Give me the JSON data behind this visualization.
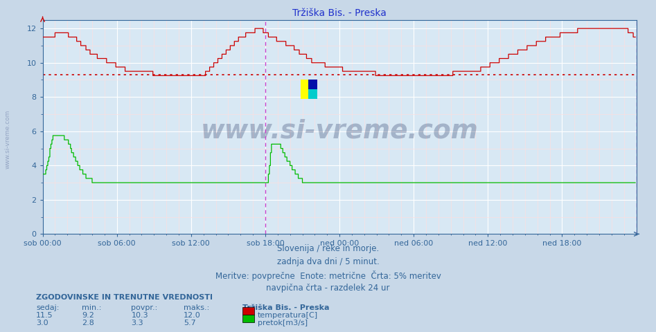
{
  "title": "Tržiška Bis. - Preska",
  "title_color": "#2233cc",
  "fig_bg": "#c8d8e8",
  "plot_bg": "#d8e8f4",
  "grid_major_color": "#ffffff",
  "grid_minor_color": "#ffdddd",
  "axis_color": "#336699",
  "temp_color": "#cc0000",
  "flow_color": "#00bb00",
  "avg_line_color": "#cc0000",
  "avg_line_y": 9.3,
  "vline_color": "#cc44cc",
  "vline_x_hours": 18,
  "vline2_color": "#cc44cc",
  "ylim": [
    0,
    12.5
  ],
  "yticks": [
    0,
    2,
    4,
    6,
    8,
    10,
    12
  ],
  "yminor_ticks": [
    1,
    3,
    5,
    7,
    9,
    11
  ],
  "n_points": 576,
  "hours_total": 48,
  "x_tick_hours": [
    0,
    6,
    12,
    18,
    24,
    30,
    36,
    42
  ],
  "x_tick_labels": [
    "sob 00:00",
    "sob 06:00",
    "sob 12:00",
    "sob 18:00",
    "ned 00:00",
    "ned 06:00",
    "ned 12:00",
    "ned 18:00"
  ],
  "watermark": "www.si-vreme.com",
  "watermark_color": "#1a2a5a",
  "watermark_alpha": 0.28,
  "left_text": "www.si-vreme.com",
  "footer": [
    "Slovenija / reke in morje.",
    "zadnja dva dni / 5 minut.",
    "Meritve: povprečne  Enote: metrične  Črta: 5% meritev",
    "navpična črta - razdelek 24 ur"
  ],
  "footer_color": "#336699",
  "stats_header": "ZGODOVINSKE IN TRENUTNE VREDNOSTI",
  "stats_col_labels": [
    "sedaj:",
    "min.:",
    "povpr.:",
    "maks.:"
  ],
  "temp_stats": [
    11.5,
    9.2,
    10.3,
    12.0
  ],
  "flow_stats": [
    3.0,
    2.8,
    3.3,
    5.7
  ],
  "legend_station": "Tržiška Bis. - Preska",
  "legend_items": [
    {
      "label": "temperatura[C]",
      "color": "#cc0000"
    },
    {
      "label": "pretok[m3/s]",
      "color": "#00bb00"
    }
  ],
  "left_label": "www.si-vreme.com"
}
